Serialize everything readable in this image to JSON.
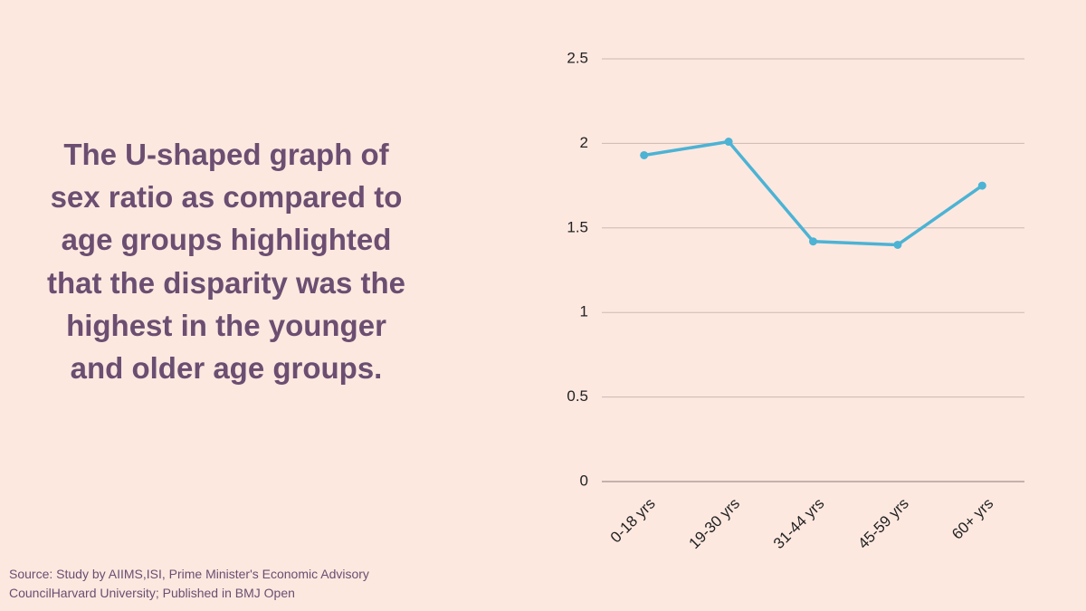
{
  "annotation": "The U-shaped graph of sex ratio as compared to age groups highlighted that the disparity was the highest in the younger and older age groups.",
  "source": "Source: Study by AIIMS,ISI, Prime Minister's Economic Advisory CouncilHarvard University; Published in BMJ Open",
  "chart_data": {
    "type": "line",
    "categories": [
      "0-18 yrs",
      "19-30 yrs",
      "31-44 yrs",
      "45-59 yrs",
      "60+ yrs"
    ],
    "values": [
      1.93,
      2.01,
      1.42,
      1.4,
      1.75
    ],
    "color": "#4cb3d4",
    "ylim": [
      0,
      2.5
    ],
    "yticks": [
      0,
      0.5,
      1,
      1.5,
      2,
      2.5
    ],
    "grid": true
  }
}
